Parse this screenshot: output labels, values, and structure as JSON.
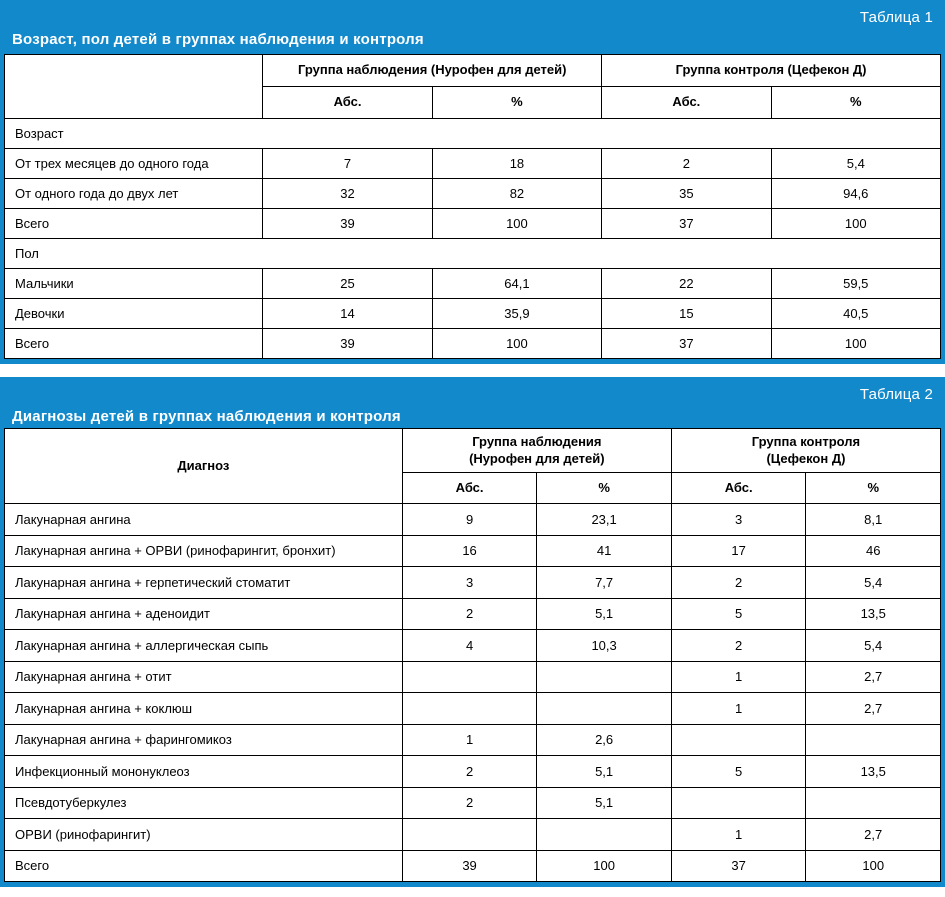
{
  "accent_color": "#1289cb",
  "table1": {
    "badge": "Таблица 1",
    "title": "Возраст, пол детей в группах наблюдения и контроля",
    "col_groups": [
      "Группа наблюдения (Нурофен для детей)",
      "Группа контроля (Цефекон Д)"
    ],
    "sub_headers": [
      "Абс.",
      "%",
      "Абс.",
      "%"
    ],
    "sections": [
      {
        "label": "Возраст",
        "rows": [
          {
            "label": "От трех месяцев до одного года",
            "values": [
              "7",
              "18",
              "2",
              "5,4"
            ]
          },
          {
            "label": "От одного года до двух лет",
            "values": [
              "32",
              "82",
              "35",
              "94,6"
            ]
          },
          {
            "label": "Всего",
            "values": [
              "39",
              "100",
              "37",
              "100"
            ]
          }
        ]
      },
      {
        "label": "Пол",
        "rows": [
          {
            "label": "Мальчики",
            "values": [
              "25",
              "64,1",
              "22",
              "59,5"
            ]
          },
          {
            "label": "Девочки",
            "values": [
              "14",
              "35,9",
              "15",
              "40,5"
            ]
          },
          {
            "label": "Всего",
            "values": [
              "39",
              "100",
              "37",
              "100"
            ]
          }
        ]
      }
    ]
  },
  "table2": {
    "badge": "Таблица 2",
    "title": "Диагнозы детей в группах наблюдения и контроля",
    "diagnosis_header": "Диагноз",
    "col_groups": [
      "Группа наблюдения\n(Нурофен для детей)",
      "Группа контроля\n(Цефекон Д)"
    ],
    "sub_headers": [
      "Абс.",
      "%",
      "Абс.",
      "%"
    ],
    "rows": [
      {
        "label": "Лакунарная ангина",
        "values": [
          "9",
          "23,1",
          "3",
          "8,1"
        ]
      },
      {
        "label": "Лакунарная ангина + ОРВИ (ринофарингит, бронхит)",
        "values": [
          "16",
          "41",
          "17",
          "46"
        ]
      },
      {
        "label": "Лакунарная ангина + герпетический стоматит",
        "values": [
          "3",
          "7,7",
          "2",
          "5,4"
        ]
      },
      {
        "label": "Лакунарная ангина + аденоидит",
        "values": [
          "2",
          "5,1",
          "5",
          "13,5"
        ]
      },
      {
        "label": "Лакунарная ангина + аллергическая сыпь",
        "values": [
          "4",
          "10,3",
          "2",
          "5,4"
        ]
      },
      {
        "label": "Лакунарная ангина + отит",
        "values": [
          "",
          "",
          "1",
          "2,7"
        ]
      },
      {
        "label": "Лакунарная ангина + коклюш",
        "values": [
          "",
          "",
          "1",
          "2,7"
        ]
      },
      {
        "label": "Лакунарная ангина + фарингомикоз",
        "values": [
          "1",
          "2,6",
          "",
          ""
        ]
      },
      {
        "label": "Инфекционный мононуклеоз",
        "values": [
          "2",
          "5,1",
          "5",
          "13,5"
        ]
      },
      {
        "label": "Псевдотуберкулез",
        "values": [
          "2",
          "5,1",
          "",
          ""
        ]
      },
      {
        "label": "ОРВИ (ринофарингит)",
        "values": [
          "",
          "",
          "1",
          "2,7"
        ]
      },
      {
        "label": "Всего",
        "values": [
          "39",
          "100",
          "37",
          "100"
        ]
      }
    ]
  }
}
